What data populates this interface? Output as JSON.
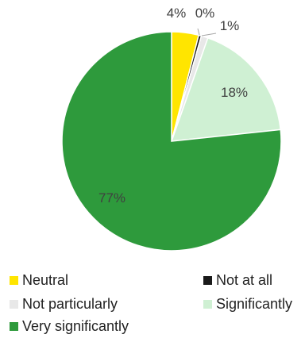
{
  "chart_data": {
    "type": "pie",
    "slices": [
      {
        "name": "Neutral",
        "value": 4,
        "label": "4%",
        "color": "#FFE500"
      },
      {
        "name": "Not at all",
        "value": 0.4,
        "label": "0%",
        "color": "#1A1A1A"
      },
      {
        "name": "Not particularly",
        "value": 1,
        "label": "1%",
        "color": "#E8E8E8"
      },
      {
        "name": "Significantly",
        "value": 18,
        "label": "18%",
        "color": "#CFF0D3"
      },
      {
        "name": "Very significantly",
        "value": 77,
        "label": "77%",
        "color": "#2E9A3C"
      }
    ],
    "legend": {
      "position": "bottom"
    }
  }
}
